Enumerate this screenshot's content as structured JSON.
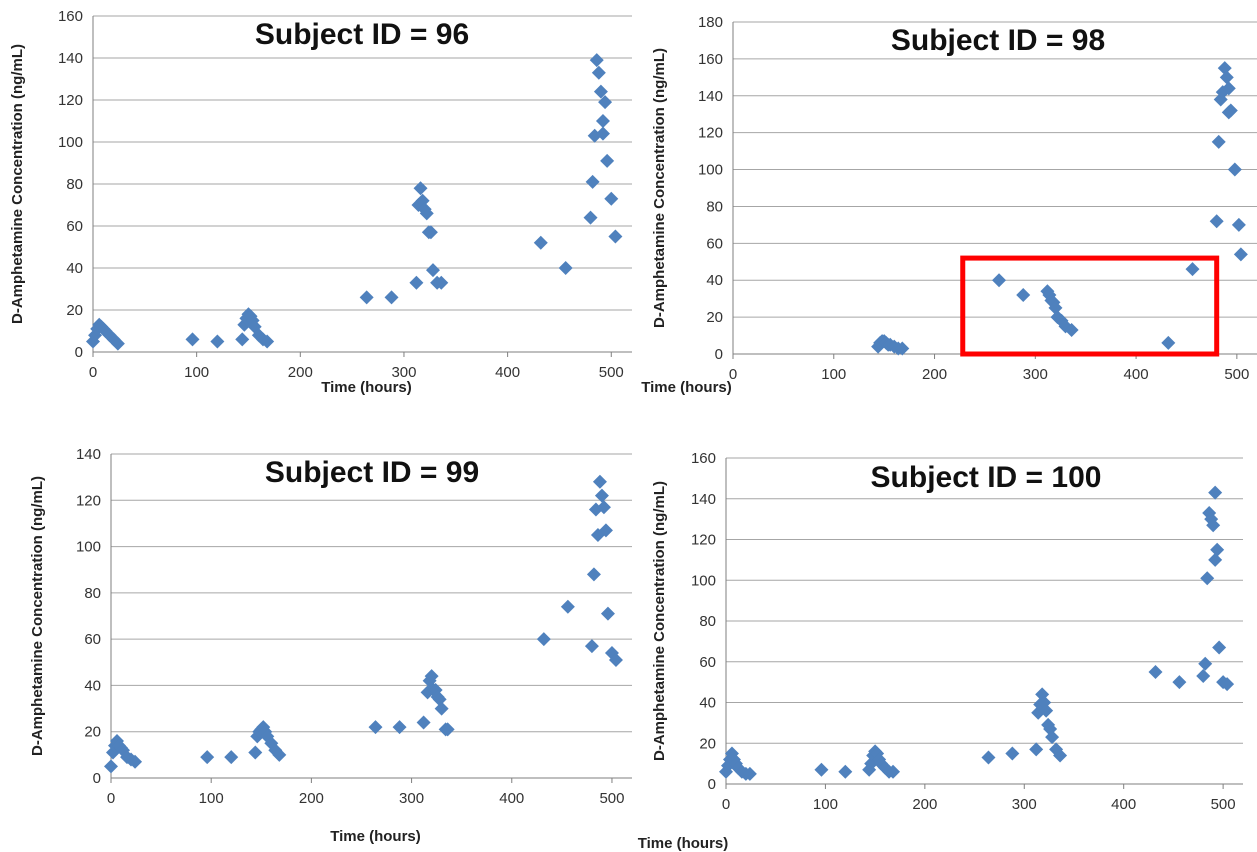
{
  "marker_color": "#4f81bd",
  "highlight_color": "#ff0000",
  "grid_color": "#a6a6a6",
  "chart_data": [
    {
      "type": "scatter",
      "title": "Subject ID = 96",
      "xlabel": "Time (hours)",
      "ylabel": "D-Amphetamine Concentration (ng/mL)",
      "xlim": [
        0,
        520
      ],
      "ylim": [
        0,
        160
      ],
      "xticks": [
        0,
        100,
        200,
        300,
        400,
        500
      ],
      "yticks": [
        0,
        20,
        40,
        60,
        80,
        100,
        120,
        140,
        160
      ],
      "grid": "horizontal",
      "points": [
        [
          0,
          5
        ],
        [
          2,
          8
        ],
        [
          4,
          11
        ],
        [
          6,
          13
        ],
        [
          8,
          12
        ],
        [
          10,
          11
        ],
        [
          12,
          10
        ],
        [
          16,
          8
        ],
        [
          20,
          6
        ],
        [
          24,
          4
        ],
        [
          96,
          6
        ],
        [
          120,
          5
        ],
        [
          144,
          6
        ],
        [
          146,
          13
        ],
        [
          148,
          16
        ],
        [
          150,
          18
        ],
        [
          152,
          17
        ],
        [
          154,
          15
        ],
        [
          156,
          12
        ],
        [
          160,
          8
        ],
        [
          164,
          6
        ],
        [
          168,
          5
        ],
        [
          264,
          26
        ],
        [
          288,
          26
        ],
        [
          312,
          33
        ],
        [
          314,
          70
        ],
        [
          316,
          78
        ],
        [
          318,
          72
        ],
        [
          320,
          68
        ],
        [
          322,
          66
        ],
        [
          324,
          57
        ],
        [
          326,
          57
        ],
        [
          328,
          39
        ],
        [
          332,
          33
        ],
        [
          336,
          33
        ],
        [
          432,
          52
        ],
        [
          456,
          40
        ],
        [
          480,
          64
        ],
        [
          482,
          81
        ],
        [
          484,
          103
        ],
        [
          486,
          139
        ],
        [
          488,
          133
        ],
        [
          490,
          124
        ],
        [
          492,
          110
        ],
        [
          494,
          119
        ],
        [
          492,
          104
        ],
        [
          496,
          91
        ],
        [
          500,
          73
        ],
        [
          504,
          55
        ]
      ]
    },
    {
      "type": "scatter",
      "title": "Subject ID = 98",
      "xlabel": "Time (hours)",
      "ylabel": "D-Amphetamine Concentration (ng/mL)",
      "xlim": [
        0,
        520
      ],
      "ylim": [
        0,
        180
      ],
      "xticks": [
        0,
        100,
        200,
        300,
        400,
        500
      ],
      "yticks": [
        0,
        20,
        40,
        60,
        80,
        100,
        120,
        140,
        160,
        180
      ],
      "grid": "horizontal",
      "highlight_box": {
        "x": [
          228,
          480
        ],
        "y": [
          0,
          52
        ]
      },
      "points": [
        [
          144,
          4
        ],
        [
          146,
          6
        ],
        [
          148,
          7
        ],
        [
          150,
          7
        ],
        [
          152,
          6
        ],
        [
          154,
          5
        ],
        [
          156,
          5
        ],
        [
          160,
          4
        ],
        [
          164,
          3
        ],
        [
          168,
          3
        ],
        [
          264,
          40
        ],
        [
          288,
          32
        ],
        [
          312,
          34
        ],
        [
          314,
          32
        ],
        [
          316,
          29
        ],
        [
          318,
          28
        ],
        [
          320,
          25
        ],
        [
          322,
          20
        ],
        [
          326,
          18
        ],
        [
          330,
          15
        ],
        [
          336,
          13
        ],
        [
          432,
          6
        ],
        [
          456,
          46
        ],
        [
          480,
          72
        ],
        [
          482,
          115
        ],
        [
          484,
          138
        ],
        [
          486,
          142
        ],
        [
          488,
          155
        ],
        [
          490,
          150
        ],
        [
          492,
          144
        ],
        [
          494,
          132
        ],
        [
          492,
          131
        ],
        [
          498,
          100
        ],
        [
          502,
          70
        ],
        [
          504,
          54
        ]
      ]
    },
    {
      "type": "scatter",
      "title": "Subject ID = 99",
      "xlabel": "Time (hours)",
      "ylabel": "D-Amphetamine Concentration (ng/mL)",
      "xlim": [
        0,
        520
      ],
      "ylim": [
        0,
        140
      ],
      "xticks": [
        0,
        100,
        200,
        300,
        400,
        500
      ],
      "yticks": [
        0,
        20,
        40,
        60,
        80,
        100,
        120,
        140
      ],
      "grid": "horizontal",
      "points": [
        [
          0,
          5
        ],
        [
          2,
          11
        ],
        [
          4,
          14
        ],
        [
          6,
          16
        ],
        [
          8,
          14
        ],
        [
          10,
          13
        ],
        [
          12,
          12
        ],
        [
          16,
          9
        ],
        [
          20,
          8
        ],
        [
          24,
          7
        ],
        [
          96,
          9
        ],
        [
          120,
          9
        ],
        [
          144,
          11
        ],
        [
          146,
          18
        ],
        [
          148,
          20
        ],
        [
          150,
          21
        ],
        [
          152,
          22
        ],
        [
          154,
          20
        ],
        [
          156,
          18
        ],
        [
          160,
          15
        ],
        [
          164,
          12
        ],
        [
          168,
          10
        ],
        [
          264,
          22
        ],
        [
          288,
          22
        ],
        [
          312,
          24
        ],
        [
          316,
          37
        ],
        [
          318,
          42
        ],
        [
          320,
          44
        ],
        [
          322,
          38
        ],
        [
          324,
          38
        ],
        [
          326,
          35
        ],
        [
          328,
          34
        ],
        [
          330,
          30
        ],
        [
          334,
          21
        ],
        [
          336,
          21
        ],
        [
          432,
          60
        ],
        [
          456,
          74
        ],
        [
          480,
          57
        ],
        [
          482,
          88
        ],
        [
          484,
          116
        ],
        [
          486,
          105
        ],
        [
          488,
          128
        ],
        [
          490,
          122
        ],
        [
          492,
          117
        ],
        [
          494,
          107
        ],
        [
          496,
          71
        ],
        [
          500,
          54
        ],
        [
          504,
          51
        ]
      ]
    },
    {
      "type": "scatter",
      "title": "Subject ID = 100",
      "xlabel": "Time (hours)",
      "ylabel": "D-Amphetamine Concentration (ng/mL)",
      "xlim": [
        0,
        520
      ],
      "ylim": [
        0,
        160
      ],
      "xticks": [
        0,
        100,
        200,
        300,
        400,
        500
      ],
      "yticks": [
        0,
        20,
        40,
        60,
        80,
        100,
        120,
        140,
        160
      ],
      "grid": "horizontal",
      "points": [
        [
          0,
          6
        ],
        [
          2,
          9
        ],
        [
          4,
          12
        ],
        [
          6,
          15
        ],
        [
          8,
          12
        ],
        [
          10,
          10
        ],
        [
          12,
          8
        ],
        [
          16,
          6
        ],
        [
          20,
          5
        ],
        [
          24,
          5
        ],
        [
          96,
          7
        ],
        [
          120,
          6
        ],
        [
          144,
          7
        ],
        [
          146,
          10
        ],
        [
          148,
          14
        ],
        [
          150,
          16
        ],
        [
          152,
          15
        ],
        [
          154,
          12
        ],
        [
          156,
          10
        ],
        [
          160,
          8
        ],
        [
          164,
          6
        ],
        [
          168,
          6
        ],
        [
          264,
          13
        ],
        [
          288,
          15
        ],
        [
          312,
          17
        ],
        [
          314,
          35
        ],
        [
          316,
          39
        ],
        [
          318,
          44
        ],
        [
          320,
          40
        ],
        [
          322,
          36
        ],
        [
          324,
          29
        ],
        [
          326,
          27
        ],
        [
          328,
          23
        ],
        [
          332,
          17
        ],
        [
          336,
          14
        ],
        [
          432,
          55
        ],
        [
          456,
          50
        ],
        [
          480,
          53
        ],
        [
          482,
          59
        ],
        [
          484,
          101
        ],
        [
          486,
          133
        ],
        [
          488,
          130
        ],
        [
          490,
          127
        ],
        [
          492,
          143
        ],
        [
          494,
          115
        ],
        [
          492,
          110
        ],
        [
          496,
          67
        ],
        [
          500,
          50
        ],
        [
          504,
          49
        ]
      ]
    }
  ]
}
